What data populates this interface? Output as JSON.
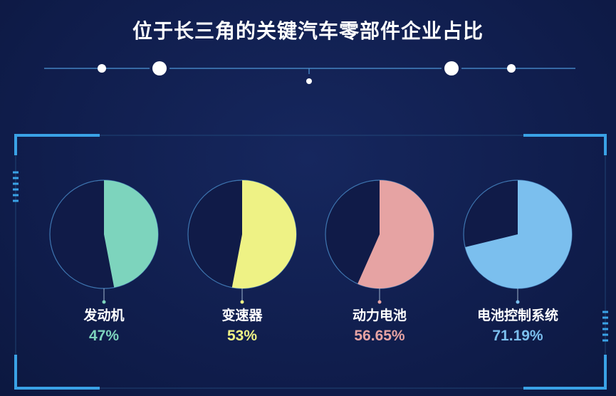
{
  "title": "位于长三角的关键汽车零部件企业占比",
  "chart_data": [
    {
      "type": "pie",
      "label": "发动机",
      "value": 47,
      "display": "47%",
      "color": "#7dd4bd"
    },
    {
      "type": "pie",
      "label": "变速器",
      "value": 53,
      "display": "53%",
      "color": "#eef285"
    },
    {
      "type": "pie",
      "label": "动力电池",
      "value": 56.65,
      "display": "56.65%",
      "color": "#e6a3a3"
    },
    {
      "type": "pie",
      "label": "电池控制系统",
      "value": 71.19,
      "display": "71.19%",
      "color": "#7bbfee"
    }
  ]
}
